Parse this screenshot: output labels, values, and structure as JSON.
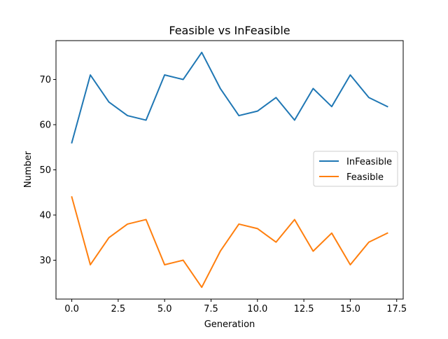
{
  "chart_data": {
    "type": "line",
    "title": "Feasible vs InFeasible",
    "xlabel": "Generation",
    "ylabel": "Number",
    "x": [
      0,
      1,
      2,
      3,
      4,
      5,
      6,
      7,
      8,
      9,
      10,
      11,
      12,
      13,
      14,
      15,
      16,
      17
    ],
    "series": [
      {
        "name": "InFeasible",
        "color": "#1f77b4",
        "values": [
          56,
          71,
          65,
          62,
          61,
          71,
          70,
          76,
          68,
          62,
          63,
          66,
          61,
          68,
          64,
          71,
          66,
          64
        ]
      },
      {
        "name": "Feasible",
        "color": "#ff7f0e",
        "values": [
          44,
          29,
          35,
          38,
          39,
          29,
          30,
          24,
          32,
          38,
          37,
          34,
          39,
          32,
          36,
          29,
          34,
          36
        ]
      }
    ],
    "xlim": [
      -0.85,
      17.85
    ],
    "ylim": [
      21.4,
      78.6
    ],
    "xticks": [
      0.0,
      2.5,
      5.0,
      7.5,
      10.0,
      12.5,
      15.0,
      17.5
    ],
    "xtick_labels": [
      "0.0",
      "2.5",
      "5.0",
      "7.5",
      "10.0",
      "12.5",
      "15.0",
      "17.5"
    ],
    "yticks": [
      30,
      40,
      50,
      60,
      70
    ],
    "ytick_labels": [
      "30",
      "40",
      "50",
      "60",
      "70"
    ],
    "grid": false,
    "legend_position": "center-right"
  }
}
